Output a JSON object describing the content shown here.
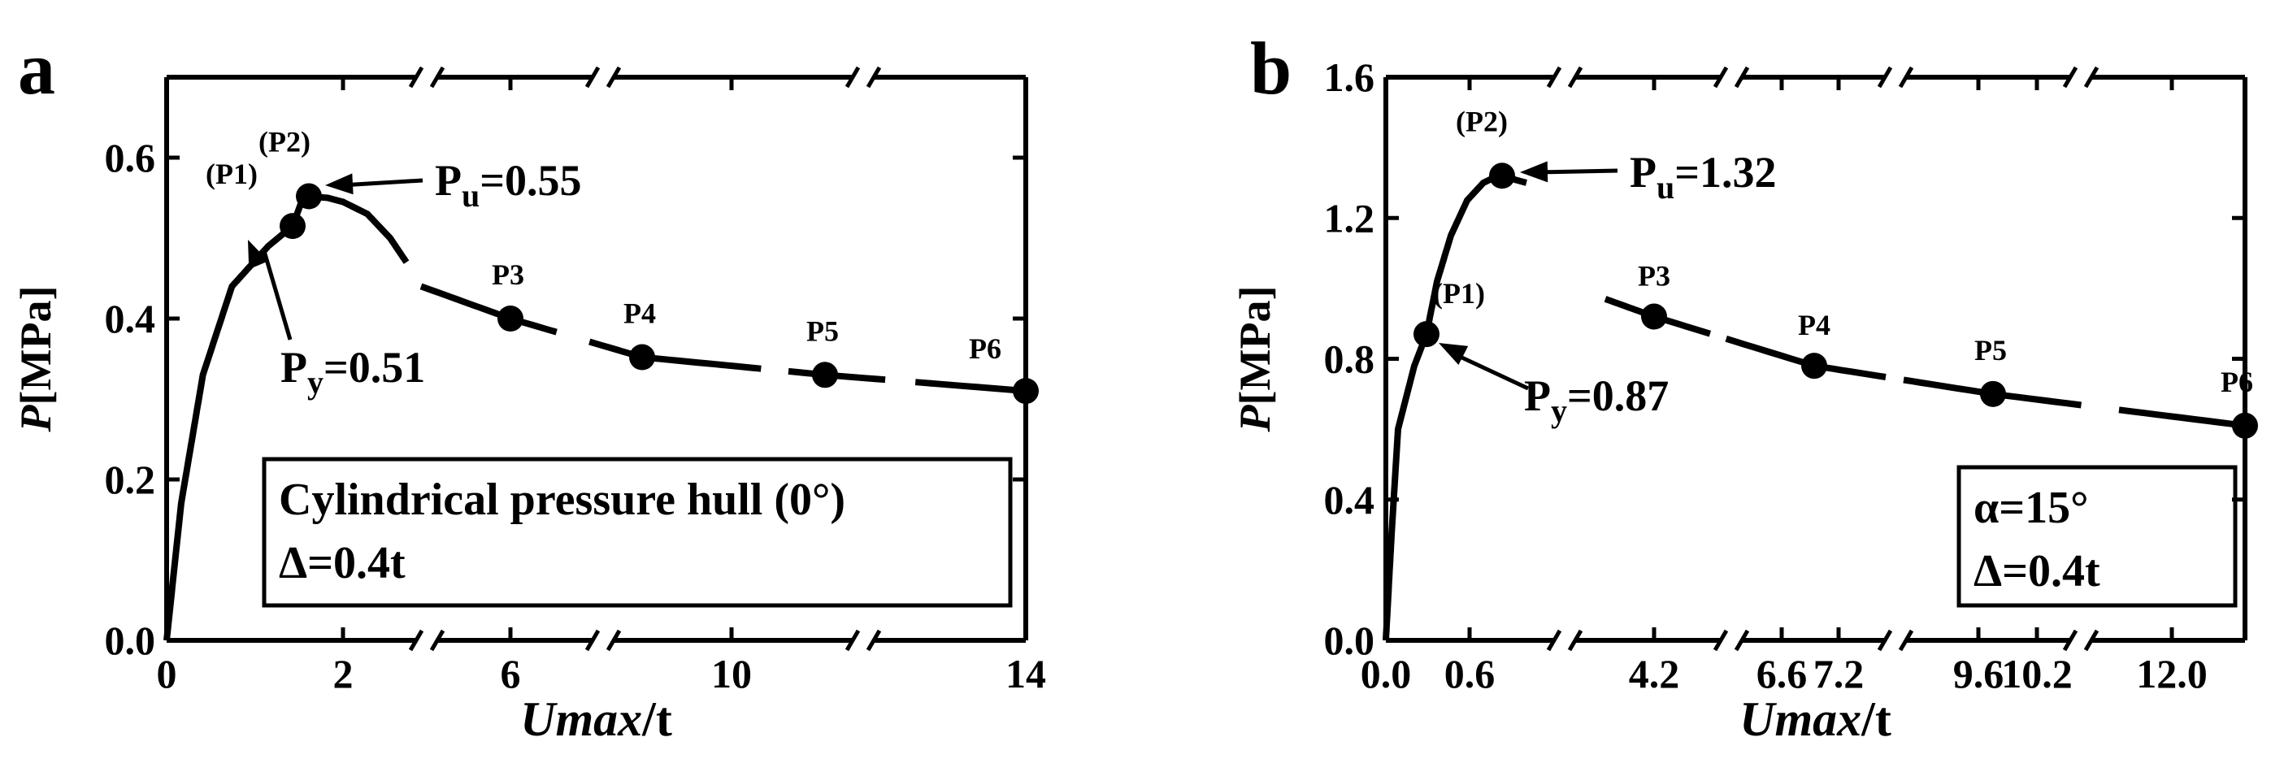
{
  "chart_data": [
    {
      "panel_label": "a",
      "type": "line",
      "ylabel_italic": "P",
      "ylabel_unit": "[MPa]",
      "xlabel_italic": "Umax",
      "xlabel_unit": "/t",
      "ylim": [
        0.0,
        0.7
      ],
      "yticks": [
        "0.0",
        "0.2",
        "0.4",
        "0.6"
      ],
      "ytick_values": [
        0.0,
        0.2,
        0.4,
        0.6
      ],
      "xticks": [
        "0",
        "2",
        "6",
        "10",
        "14"
      ],
      "x_axis_breaks": true,
      "curve": {
        "x": [
          0.0,
          0.1,
          0.25,
          0.45,
          0.7,
          1.0,
          1.3,
          1.55,
          1.8,
          2.0,
          2.5,
          3.2,
          4.0,
          4.6,
          6.2,
          8.5,
          11.5,
          14.5
        ],
        "y": [
          0.0,
          0.17,
          0.33,
          0.44,
          0.49,
          0.515,
          0.545,
          0.552,
          0.55,
          0.545,
          0.53,
          0.5,
          0.47,
          0.44,
          0.4,
          0.352,
          0.33,
          0.31
        ]
      },
      "points": [
        {
          "label": "(P1)",
          "x": 1.0,
          "y": 0.515
        },
        {
          "label": "(P2)",
          "x": 1.55,
          "y": 0.552
        },
        {
          "label": "P3",
          "x": 6.2,
          "y": 0.4
        },
        {
          "label": "P4",
          "x": 8.5,
          "y": 0.352
        },
        {
          "label": "P5",
          "x": 11.5,
          "y": 0.33
        },
        {
          "label": "P6",
          "x": 14.5,
          "y": 0.31
        }
      ],
      "annotations": [
        {
          "main": "P",
          "sub": "u",
          "value": "=0.55"
        },
        {
          "main": "P",
          "sub": "y",
          "value": "=0.51"
        }
      ],
      "legend_box": [
        "Cylindrical pressure hull (0°)",
        "Δ=0.4t"
      ],
      "legend_position": "bottom-right"
    },
    {
      "panel_label": "b",
      "type": "line",
      "ylabel_italic": "P",
      "ylabel_unit": "[MPa]",
      "xlabel_italic": "Umax",
      "xlabel_unit": "/t",
      "ylim": [
        0.0,
        1.6
      ],
      "yticks": [
        "0.0",
        "0.4",
        "0.8",
        "1.2",
        "1.6"
      ],
      "ytick_values": [
        0.0,
        0.4,
        0.8,
        1.2,
        1.6
      ],
      "xticks": [
        "0.0",
        "0.6",
        "4.2",
        "6.6",
        "7.2",
        "9.6",
        "10.2",
        "12.0"
      ],
      "x_axis_breaks": true,
      "curve": {
        "x": [
          0.0,
          0.05,
          0.12,
          0.18,
          0.25,
          0.32,
          0.4,
          0.5,
          0.62,
          0.72,
          0.8,
          0.9,
          1.0,
          3.8,
          4.5,
          7.0,
          10.0,
          12.8
        ],
        "y": [
          0.0,
          0.3,
          0.6,
          0.78,
          0.87,
          1.02,
          1.15,
          1.25,
          1.3,
          1.32,
          1.32,
          1.31,
          1.3,
          0.97,
          0.92,
          0.78,
          0.7,
          0.61
        ]
      },
      "points": [
        {
          "label": "(P1)",
          "x": 0.25,
          "y": 0.87
        },
        {
          "label": "(P2)",
          "x": 0.8,
          "y": 1.32
        },
        {
          "label": "P3",
          "x": 4.5,
          "y": 0.92
        },
        {
          "label": "P4",
          "x": 7.0,
          "y": 0.78
        },
        {
          "label": "P5",
          "x": 10.0,
          "y": 0.7
        },
        {
          "label": "P6",
          "x": 12.8,
          "y": 0.61
        }
      ],
      "annotations": [
        {
          "main": "P",
          "sub": "u",
          "value": "=1.32"
        },
        {
          "main": "P",
          "sub": "y",
          "value": "=0.87"
        }
      ],
      "legend_box": [
        "α=15°",
        "Δ=0.4t"
      ],
      "legend_position": "bottom-right"
    }
  ]
}
